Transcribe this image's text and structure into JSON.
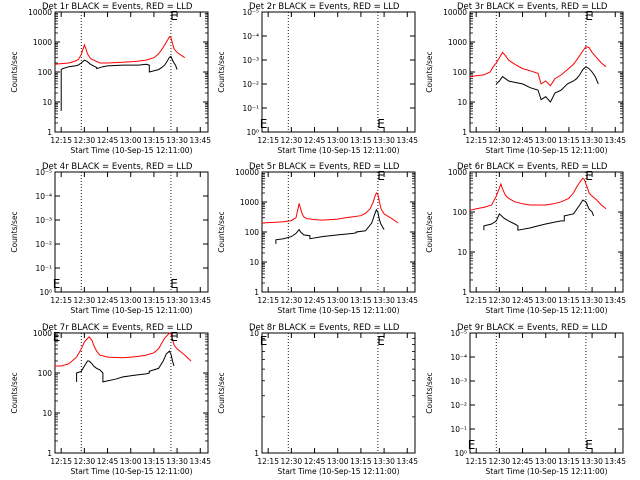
{
  "figure": {
    "xlabel": "Start Time (10-Sep-15 12:11:00)",
    "ylabel": "Counts/sec",
    "x_tick_labels": [
      "12:15",
      "12:30",
      "12:45",
      "13:00",
      "13:15",
      "13:30",
      "13:45"
    ],
    "colors": {
      "events": "#000000",
      "lld": "#ff0000",
      "axes": "#000000",
      "marker": "#000000"
    }
  },
  "chart_data": [
    {
      "type": "line",
      "title": "Det 1r BLACK = Events, RED = LLD",
      "xlabel": "Start Time (10-Sep-15 12:11:00)",
      "ylabel": "Counts/sec",
      "y_tick_labels": [
        "1",
        "10",
        "100",
        "1000",
        "10000"
      ],
      "yscale": "log",
      "ylim": [
        1,
        10000
      ],
      "xlim": [
        "12:11",
        "13:50"
      ],
      "vlines": [
        "12:28",
        "13:26"
      ],
      "markers": [
        {
          "label": "E",
          "x": "13:28",
          "y": 10000
        }
      ],
      "series": [
        {
          "name": "LLD",
          "color": "#ff0000",
          "x": [
            "12:11",
            "12:15",
            "12:20",
            "12:24",
            "12:26",
            "12:28",
            "12:29",
            "12:30",
            "12:31",
            "12:32",
            "12:34",
            "12:36",
            "12:40",
            "12:45",
            "12:55",
            "13:00",
            "13:05",
            "13:10",
            "13:15",
            "13:18",
            "13:20",
            "13:22",
            "13:24",
            "13:25",
            "13:26",
            "13:27",
            "13:28",
            "13:30",
            "13:32",
            "13:35"
          ],
          "y": [
            180,
            190,
            200,
            230,
            260,
            380,
            550,
            800,
            600,
            400,
            280,
            250,
            200,
            200,
            210,
            220,
            230,
            250,
            300,
            400,
            550,
            800,
            1200,
            1500,
            1400,
            900,
            600,
            450,
            380,
            300
          ]
        },
        {
          "name": "Events",
          "color": "#000000",
          "x": [
            "12:15",
            "12:15",
            "12:16",
            "12:20",
            "12:24",
            "12:26",
            "12:28",
            "12:30",
            "12:32",
            "12:34",
            "12:36",
            "12:38",
            "12:38",
            "12:42",
            "12:45",
            "12:55",
            "12:57",
            "13:05",
            "13:10",
            "13:12",
            "13:12",
            "13:18",
            "13:20",
            "13:22",
            "13:24",
            "13:25",
            "13:26",
            "13:27",
            "13:28",
            "13:29",
            "13:30"
          ],
          "y": [
            5,
            120,
            130,
            150,
            160,
            170,
            200,
            250,
            220,
            180,
            160,
            140,
            130,
            150,
            160,
            170,
            170,
            170,
            180,
            170,
            100,
            120,
            140,
            170,
            250,
            310,
            330,
            250,
            200,
            170,
            120
          ]
        }
      ]
    },
    {
      "type": "line",
      "title": "Det 2r BLACK = Events, RED = LLD",
      "xlabel": "Start Time (10-Sep-15 12:11:00)",
      "ylabel": "Counts/sec",
      "y_tick_labels": [
        "10⁰",
        "10⁻¹",
        "10⁻²",
        "10⁻³",
        "10⁻⁴",
        "10⁻⁵"
      ],
      "yscale": "log",
      "xlim": [
        "12:11",
        "13:50"
      ],
      "vlines": [
        "12:28",
        "13:26"
      ],
      "markers": [
        {
          "label": "E",
          "x": "12:12",
          "y": "bottom"
        },
        {
          "label": "E",
          "x": "13:28",
          "y": "bottom"
        }
      ],
      "series": []
    },
    {
      "type": "line",
      "title": "Det 3r BLACK = Events, RED = LLD",
      "xlabel": "Start Time (10-Sep-15 12:11:00)",
      "ylabel": "Counts/sec",
      "y_tick_labels": [
        "1",
        "10",
        "100",
        "1000",
        "10000"
      ],
      "yscale": "log",
      "ylim": [
        1,
        10000
      ],
      "xlim": [
        "12:11",
        "13:50"
      ],
      "vlines": [
        "12:28",
        "13:26"
      ],
      "markers": [
        {
          "label": "E",
          "x": "13:28",
          "y": 10000
        }
      ],
      "series": [
        {
          "name": "LLD",
          "color": "#ff0000",
          "x": [
            "12:11",
            "12:15",
            "12:20",
            "12:24",
            "12:26",
            "12:28",
            "12:30",
            "12:32",
            "12:34",
            "12:36",
            "12:40",
            "12:45",
            "12:50",
            "12:55",
            "12:57",
            "13:00",
            "13:03",
            "13:06",
            "13:10",
            "13:14",
            "13:18",
            "13:20",
            "13:22",
            "13:24",
            "13:26",
            "13:28",
            "13:30",
            "13:33",
            "13:36",
            "13:39"
          ],
          "y": [
            70,
            75,
            80,
            100,
            150,
            200,
            300,
            450,
            350,
            250,
            180,
            130,
            110,
            90,
            40,
            50,
            35,
            60,
            80,
            120,
            180,
            250,
            350,
            500,
            700,
            650,
            450,
            300,
            200,
            150
          ]
        },
        {
          "name": "Events",
          "color": "#000000",
          "x": [
            "12:28",
            "12:30",
            "12:32",
            "12:34",
            "12:36",
            "12:40",
            "12:45",
            "12:50",
            "12:55",
            "12:57",
            "13:00",
            "13:03",
            "13:06",
            "13:10",
            "13:14",
            "13:18",
            "13:20",
            "13:22",
            "13:24",
            "13:26",
            "13:28",
            "13:30",
            "13:32",
            "13:34"
          ],
          "y": [
            40,
            50,
            70,
            60,
            50,
            45,
            40,
            30,
            25,
            12,
            15,
            10,
            20,
            25,
            40,
            50,
            60,
            80,
            120,
            150,
            130,
            100,
            70,
            40
          ]
        }
      ]
    },
    {
      "type": "line",
      "title": "Det 4r BLACK = Events, RED = LLD",
      "xlabel": "Start Time (10-Sep-15 12:11:00)",
      "ylabel": "Counts/sec",
      "y_tick_labels": [
        "10⁰",
        "10⁻¹",
        "10⁻²",
        "10⁻³",
        "10⁻⁴",
        "10⁻⁵"
      ],
      "yscale": "log",
      "xlim": [
        "12:11",
        "13:50"
      ],
      "vlines": [
        "12:28",
        "13:26"
      ],
      "markers": [
        {
          "label": "E",
          "x": "12:12",
          "y": "bottom"
        },
        {
          "label": "E",
          "x": "13:28",
          "y": "bottom"
        }
      ],
      "series": []
    },
    {
      "type": "line",
      "title": "Det 5r BLACK = Events, RED = LLD",
      "xlabel": "Start Time (10-Sep-15 12:11:00)",
      "ylabel": "Counts/sec",
      "y_tick_labels": [
        "1",
        "10",
        "100",
        "1000",
        "10000"
      ],
      "yscale": "log",
      "ylim": [
        1,
        10000
      ],
      "xlim": [
        "12:11",
        "13:50"
      ],
      "vlines": [
        "12:28",
        "13:26"
      ],
      "markers": [
        {
          "label": "E",
          "x": "13:28",
          "y": 10000
        }
      ],
      "series": [
        {
          "name": "LLD",
          "color": "#ff0000",
          "x": [
            "12:11",
            "12:15",
            "12:20",
            "12:25",
            "12:30",
            "12:33",
            "12:34",
            "12:35",
            "12:36",
            "12:37",
            "12:38",
            "12:40",
            "12:45",
            "12:50",
            "12:55",
            "13:00",
            "13:05",
            "13:10",
            "13:15",
            "13:18",
            "13:21",
            "13:23",
            "13:24",
            "13:25",
            "13:26",
            "13:27",
            "13:28",
            "13:30",
            "13:35",
            "13:39"
          ],
          "y": [
            200,
            205,
            210,
            220,
            240,
            300,
            500,
            900,
            600,
            400,
            320,
            280,
            260,
            250,
            260,
            270,
            300,
            320,
            350,
            420,
            600,
            1000,
            1500,
            2000,
            1800,
            1000,
            600,
            400,
            280,
            200
          ]
        },
        {
          "name": "Events",
          "color": "#000000",
          "x": [
            "12:20",
            "12:20",
            "12:25",
            "12:30",
            "12:33",
            "12:35",
            "12:36",
            "12:37",
            "12:38",
            "12:42",
            "12:42",
            "12:50",
            "12:55",
            "13:00",
            "13:05",
            "13:10",
            "13:12",
            "13:12",
            "13:18",
            "13:22",
            "13:24",
            "13:25",
            "13:26",
            "13:27",
            "13:28",
            "13:30"
          ],
          "y": [
            40,
            55,
            60,
            70,
            90,
            120,
            100,
            90,
            80,
            75,
            60,
            70,
            75,
            80,
            85,
            90,
            95,
            100,
            110,
            200,
            400,
            550,
            450,
            250,
            180,
            120
          ]
        }
      ]
    },
    {
      "type": "line",
      "title": "Det 6r BLACK = Events, RED = LLD",
      "xlabel": "Start Time (10-Sep-15 12:11:00)",
      "ylabel": "Counts/sec",
      "y_tick_labels": [
        "1",
        "10",
        "100",
        "1000"
      ],
      "yscale": "log",
      "ylim": [
        1,
        1000
      ],
      "xlim": [
        "12:11",
        "13:50"
      ],
      "vlines": [
        "12:28",
        "13:26"
      ],
      "markers": [
        {
          "label": "E",
          "x": "13:28",
          "y": 1000
        }
      ],
      "series": [
        {
          "name": "LLD",
          "color": "#ff0000",
          "x": [
            "12:11",
            "12:15",
            "12:20",
            "12:25",
            "12:28",
            "12:30",
            "12:31",
            "12:32",
            "12:34",
            "12:36",
            "12:40",
            "12:45",
            "12:50",
            "12:55",
            "13:00",
            "13:05",
            "13:10",
            "13:15",
            "13:18",
            "13:20",
            "13:22",
            "13:24",
            "13:25",
            "13:26",
            "13:27",
            "13:28",
            "13:30",
            "13:33",
            "13:36",
            "13:39"
          ],
          "y": [
            110,
            120,
            130,
            150,
            250,
            400,
            500,
            380,
            260,
            220,
            180,
            160,
            150,
            150,
            150,
            160,
            180,
            220,
            300,
            420,
            550,
            700,
            650,
            500,
            400,
            300,
            250,
            200,
            150,
            120
          ]
        },
        {
          "name": "Events",
          "color": "#000000",
          "x": [
            "12:20",
            "12:20",
            "12:25",
            "12:28",
            "12:30",
            "12:33",
            "12:36",
            "12:40",
            "12:42",
            "12:42",
            "12:50",
            "12:55",
            "13:00",
            "13:05",
            "13:10",
            "13:12",
            "13:12",
            "13:18",
            "13:22",
            "13:24",
            "13:26",
            "13:28",
            "13:30",
            "13:31"
          ],
          "y": [
            35,
            45,
            50,
            60,
            90,
            70,
            60,
            50,
            45,
            35,
            40,
            45,
            50,
            55,
            60,
            60,
            80,
            90,
            150,
            200,
            180,
            120,
            100,
            80
          ]
        }
      ]
    },
    {
      "type": "line",
      "title": "Det 7r BLACK = Events, RED = LLD",
      "xlabel": "Start Time (10-Sep-15 12:11:00)",
      "ylabel": "Counts/sec",
      "y_tick_labels": [
        "1",
        "10",
        "100",
        "1000"
      ],
      "yscale": "log",
      "ylim": [
        1,
        1000
      ],
      "xlim": [
        "12:11",
        "13:50"
      ],
      "vlines": [
        "12:28",
        "13:26"
      ],
      "markers": [
        {
          "label": "E",
          "x": "12:12",
          "y": 1000
        },
        {
          "label": "E",
          "x": "13:28",
          "y": 1000
        }
      ],
      "series": [
        {
          "name": "LLD",
          "color": "#ff0000",
          "x": [
            "12:11",
            "12:15",
            "12:20",
            "12:25",
            "12:28",
            "12:30",
            "12:33",
            "12:35",
            "12:36",
            "12:38",
            "12:40",
            "12:45",
            "12:55",
            "13:00",
            "13:05",
            "13:10",
            "13:15",
            "13:18",
            "13:20",
            "13:22",
            "13:24",
            "13:25",
            "13:26",
            "13:27",
            "13:28",
            "13:30",
            "13:35",
            "13:39"
          ],
          "y": [
            150,
            150,
            170,
            250,
            400,
            600,
            800,
            650,
            500,
            350,
            280,
            250,
            240,
            250,
            260,
            280,
            320,
            400,
            550,
            750,
            900,
            1000,
            950,
            700,
            500,
            400,
            280,
            200
          ]
        },
        {
          "name": "Events",
          "color": "#000000",
          "x": [
            "12:25",
            "12:25",
            "12:28",
            "12:30",
            "12:32",
            "12:33",
            "12:35",
            "12:36",
            "12:38",
            "12:40",
            "12:42",
            "12:42",
            "12:50",
            "12:55",
            "13:00",
            "13:05",
            "13:10",
            "13:12",
            "13:12",
            "13:18",
            "13:21",
            "13:23",
            "13:25",
            "13:26",
            "13:27",
            "13:28"
          ],
          "y": [
            60,
            100,
            110,
            150,
            200,
            200,
            170,
            150,
            130,
            120,
            100,
            60,
            70,
            80,
            85,
            90,
            95,
            100,
            110,
            130,
            200,
            300,
            350,
            300,
            200,
            150
          ]
        }
      ]
    },
    {
      "type": "line",
      "title": "Det 8r BLACK = Events, RED = LLD",
      "xlabel": "Start Time (10-Sep-15 12:11:00)",
      "ylabel": "Counts/sec",
      "y_tick_labels": [
        "1",
        "10"
      ],
      "yscale": "log",
      "ylim": [
        1,
        10
      ],
      "xlim": [
        "12:11",
        "13:50"
      ],
      "vlines": [
        "12:28",
        "13:26"
      ],
      "markers": [
        {
          "label": "E",
          "x": "12:12",
          "y": "top"
        },
        {
          "label": "E",
          "x": "13:28",
          "y": "top"
        }
      ],
      "series": []
    },
    {
      "type": "line",
      "title": "Det 9r BLACK = Events, RED = LLD",
      "xlabel": "Start Time (10-Sep-15 12:11:00)",
      "ylabel": "Counts/sec",
      "y_tick_labels": [
        "10⁰",
        "10⁻¹",
        "10⁻²",
        "10⁻³",
        "10⁻⁴",
        "10⁻⁵"
      ],
      "yscale": "log",
      "xlim": [
        "12:11",
        "13:50"
      ],
      "vlines": [
        "12:28",
        "13:26"
      ],
      "markers": [
        {
          "label": "E",
          "x": "12:12",
          "y": "bottom"
        },
        {
          "label": "E",
          "x": "13:28",
          "y": "bottom"
        }
      ],
      "series": []
    }
  ]
}
